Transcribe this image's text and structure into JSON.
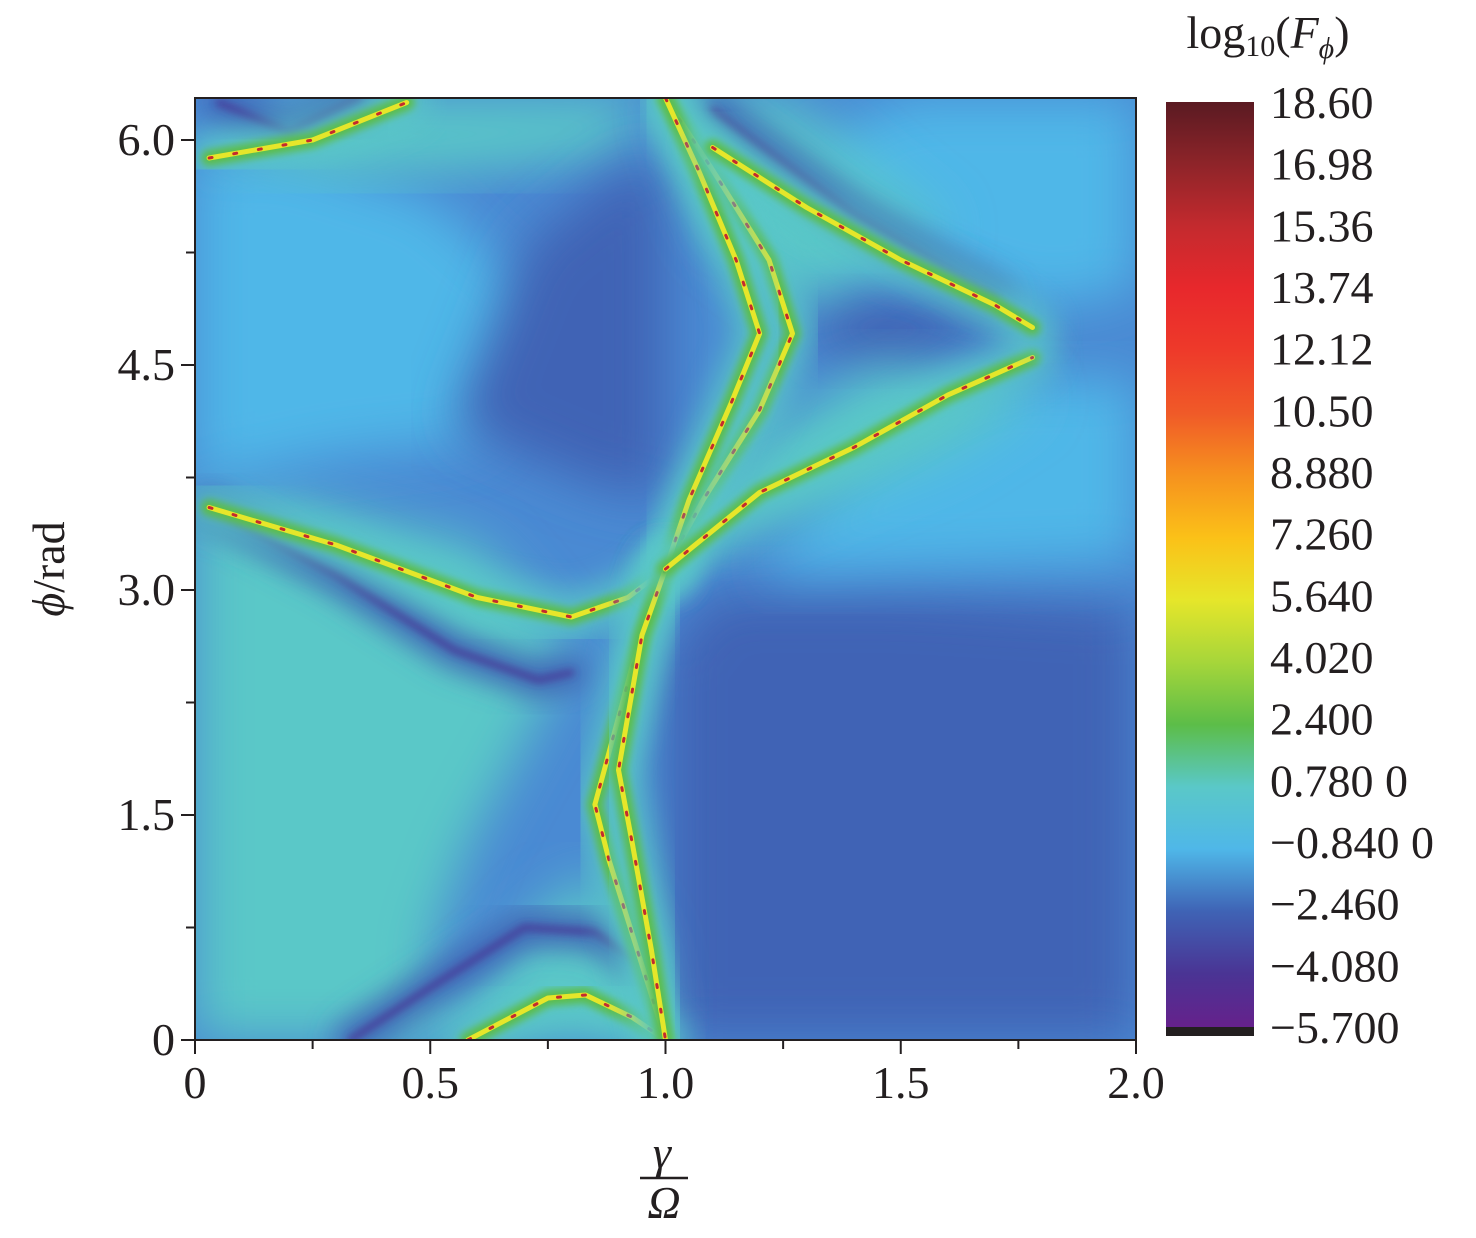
{
  "chart_data": {
    "type": "heatmap",
    "title": "",
    "xlabel": {
      "numerator": "γ",
      "denominator": "Ω"
    },
    "ylabel": {
      "symbol": "ϕ",
      "unit": "/rad"
    },
    "xlim": [
      0,
      2.0
    ],
    "ylim": [
      0,
      6.28
    ],
    "x_ticks": [
      "0",
      "0.5",
      "1.0",
      "1.5",
      "2.0"
    ],
    "x_tick_values": [
      0,
      0.5,
      1.0,
      1.5,
      2.0
    ],
    "y_ticks": [
      "0",
      "1.5",
      "3.0",
      "4.5",
      "6.0"
    ],
    "y_tick_values": [
      0,
      1.5,
      3.0,
      4.5,
      6.0
    ],
    "colorbar": {
      "title": {
        "base": "log",
        "sub": "10",
        "open": "(",
        "var": "F",
        "var_sub": "ϕ",
        "close": ")"
      },
      "labels": [
        "18.60",
        "16.98",
        "15.36",
        "13.74",
        "12.12",
        "10.50",
        "8.880",
        "7.260",
        "5.640",
        "4.020",
        "2.400",
        "0.780 0",
        "−0.840 0",
        "−2.460",
        "−4.080",
        "−5.700"
      ],
      "values": [
        18.6,
        16.98,
        15.36,
        13.74,
        12.12,
        10.5,
        8.88,
        7.26,
        5.64,
        4.02,
        2.4,
        0.78,
        -0.84,
        -2.46,
        -4.08,
        -5.7
      ],
      "colors": [
        "#5a1a22",
        "#8e2429",
        "#c42a2e",
        "#e8282c",
        "#ee3a2a",
        "#f05a28",
        "#f6921e",
        "#fbc118",
        "#e6e62a",
        "#a6d63a",
        "#5cbd48",
        "#5ac8c8",
        "#4fb7e8",
        "#3f63b5",
        "#4a3494",
        "#6a1e8a"
      ]
    },
    "levels": {
      "ridge": 5.5,
      "peak": 15.0,
      "high_bg": 0.3,
      "mid_bg": -0.6,
      "low_bg": -1.8,
      "valley": -4.5
    },
    "features": {
      "ridges": [
        {
          "points": [
            [
              0.03,
              5.88
            ],
            [
              0.25,
              6.0
            ],
            [
              0.45,
              6.25
            ]
          ]
        },
        {
          "points": [
            [
              0.03,
              3.55
            ],
            [
              0.3,
              3.3
            ],
            [
              0.6,
              2.95
            ],
            [
              0.8,
              2.82
            ],
            [
              0.92,
              2.95
            ],
            [
              1.0,
              3.14
            ]
          ]
        },
        {
          "points": [
            [
              0.58,
              0.0
            ],
            [
              0.75,
              0.28
            ],
            [
              0.83,
              0.3
            ],
            [
              0.93,
              0.15
            ],
            [
              1.0,
              0.0
            ]
          ]
        },
        {
          "points": [
            [
              1.0,
              6.28
            ],
            [
              1.1,
              5.8
            ],
            [
              1.22,
              5.2
            ],
            [
              1.27,
              4.71
            ],
            [
              1.2,
              4.2
            ],
            [
              1.08,
              3.6
            ],
            [
              1.0,
              3.14
            ]
          ]
        },
        {
          "points": [
            [
              1.0,
              6.28
            ],
            [
              1.07,
              5.8
            ],
            [
              1.15,
              5.2
            ],
            [
              1.2,
              4.71
            ],
            [
              1.14,
              4.25
            ],
            [
              1.05,
              3.6
            ],
            [
              1.0,
              3.14
            ]
          ]
        },
        {
          "points": [
            [
              1.0,
              3.14
            ],
            [
              0.93,
              2.5
            ],
            [
              0.87,
              1.8
            ],
            [
              0.85,
              1.57
            ],
            [
              0.88,
              1.2
            ],
            [
              0.94,
              0.6
            ],
            [
              1.0,
              0.0
            ]
          ]
        },
        {
          "points": [
            [
              1.0,
              3.14
            ],
            [
              0.95,
              2.7
            ],
            [
              0.9,
              1.8
            ],
            [
              0.93,
              1.3
            ],
            [
              0.97,
              0.6
            ],
            [
              1.0,
              0.0
            ]
          ]
        },
        {
          "points": [
            [
              1.0,
              3.14
            ],
            [
              1.2,
              3.65
            ],
            [
              1.4,
              3.95
            ],
            [
              1.6,
              4.3
            ],
            [
              1.78,
              4.55
            ]
          ]
        },
        {
          "points": [
            [
              1.1,
              5.95
            ],
            [
              1.3,
              5.55
            ],
            [
              1.5,
              5.2
            ],
            [
              1.7,
              4.9
            ],
            [
              1.78,
              4.75
            ]
          ]
        }
      ],
      "valleys": [
        {
          "points": [
            [
              0.05,
              6.25
            ],
            [
              0.2,
              6.05
            ],
            [
              0.35,
              6.28
            ]
          ]
        },
        {
          "points": [
            [
              0.03,
              3.55
            ],
            [
              0.3,
              3.1
            ],
            [
              0.55,
              2.6
            ],
            [
              0.73,
              2.4
            ],
            [
              0.8,
              2.45
            ]
          ]
        },
        {
          "points": [
            [
              0.33,
              0.0
            ],
            [
              0.5,
              0.35
            ],
            [
              0.7,
              0.75
            ],
            [
              0.85,
              0.72
            ],
            [
              0.93,
              0.55
            ]
          ]
        },
        {
          "points": [
            [
              1.0,
              6.28
            ],
            [
              1.0,
              4.7
            ],
            [
              1.0,
              3.14
            ],
            [
              1.0,
              1.57
            ],
            [
              1.0,
              0.0
            ]
          ]
        },
        {
          "points": [
            [
              1.08,
              4.71
            ],
            [
              1.4,
              4.71
            ],
            [
              1.78,
              4.71
            ],
            [
              2.0,
              4.71
            ]
          ]
        },
        {
          "points": [
            [
              1.0,
              1.57
            ],
            [
              1.5,
              1.57
            ],
            [
              2.0,
              1.57
            ]
          ]
        },
        {
          "points": [
            [
              1.1,
              6.2
            ],
            [
              1.4,
              5.5
            ],
            [
              1.7,
              4.95
            ]
          ]
        }
      ]
    }
  }
}
